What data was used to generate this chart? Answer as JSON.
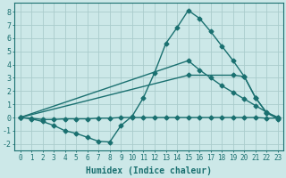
{
  "xlabel": "Humidex (Indice chaleur)",
  "xlim": [
    -0.5,
    23.5
  ],
  "ylim": [
    -2.5,
    8.7
  ],
  "xticks": [
    0,
    1,
    2,
    3,
    4,
    5,
    6,
    7,
    8,
    9,
    10,
    11,
    12,
    13,
    14,
    15,
    16,
    17,
    18,
    19,
    20,
    21,
    22,
    23
  ],
  "yticks": [
    -2,
    -1,
    0,
    1,
    2,
    3,
    4,
    5,
    6,
    7,
    8
  ],
  "background_color": "#cce8e8",
  "grid_color": "#aacccc",
  "line_color": "#1a7070",
  "curve1_x": [
    0,
    1,
    2,
    3,
    4,
    5,
    6,
    7,
    8,
    9,
    10,
    11,
    12,
    13,
    14,
    15,
    16,
    17,
    18,
    19,
    20,
    21,
    22,
    23
  ],
  "curve1_y": [
    0.0,
    -0.1,
    -0.3,
    -0.6,
    -1.0,
    -1.2,
    -1.5,
    -1.8,
    -1.85,
    -0.6,
    0.1,
    1.5,
    3.4,
    5.6,
    6.8,
    8.1,
    7.5,
    6.5,
    5.4,
    4.3,
    3.1,
    1.5,
    0.35,
    -0.1
  ],
  "curve2_x": [
    0,
    1,
    2,
    3,
    4,
    5,
    6,
    7,
    8,
    9,
    10,
    11,
    12,
    13,
    14,
    15,
    16,
    17,
    18,
    19,
    20,
    21,
    22,
    23
  ],
  "curve2_y": [
    0.0,
    -0.05,
    -0.15,
    -0.15,
    -0.1,
    -0.1,
    -0.1,
    -0.05,
    -0.05,
    0.0,
    0.0,
    0.0,
    0.0,
    0.0,
    0.0,
    0.0,
    0.0,
    0.0,
    0.0,
    0.0,
    0.0,
    0.0,
    -0.05,
    -0.05
  ],
  "curve3_x": [
    0,
    15,
    16,
    17,
    18,
    19,
    20,
    21,
    22,
    23
  ],
  "curve3_y": [
    0.0,
    4.3,
    3.6,
    3.0,
    2.4,
    1.9,
    1.4,
    0.9,
    0.4,
    0.0
  ],
  "curve4_x": [
    0,
    15,
    19,
    20,
    21,
    22,
    23
  ],
  "curve4_y": [
    0.0,
    3.2,
    3.2,
    3.1,
    1.5,
    0.35,
    0.0
  ]
}
